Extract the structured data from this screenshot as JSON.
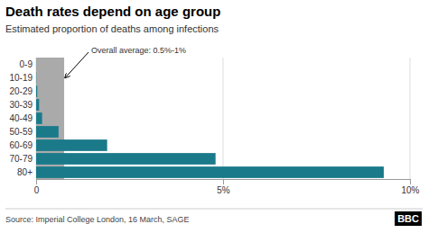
{
  "chart_data": {
    "type": "bar",
    "orientation": "horizontal",
    "title": "Death rates depend on age group",
    "subtitle": "Estimated proportion of deaths among infections",
    "categories": [
      "0-9",
      "10-19",
      "20-29",
      "30-39",
      "40-49",
      "50-59",
      "60-69",
      "70-79",
      "80+"
    ],
    "values": [
      0.002,
      0.006,
      0.03,
      0.08,
      0.16,
      0.6,
      1.9,
      4.8,
      9.3
    ],
    "color": "#1a7a8a",
    "xlim": [
      0,
      10
    ],
    "xticks": [
      0,
      {
        "value": 5,
        "label": "5%"
      },
      {
        "value": 10,
        "label": "10%"
      }
    ],
    "grid": true,
    "annotations": [
      {
        "text": "Overall average: 0.5%-1%",
        "value": 0.75,
        "color": "#aaaaaa"
      }
    ],
    "source": "Source: Imperial College London, 16 March, SAGE",
    "credit": "BBC"
  }
}
